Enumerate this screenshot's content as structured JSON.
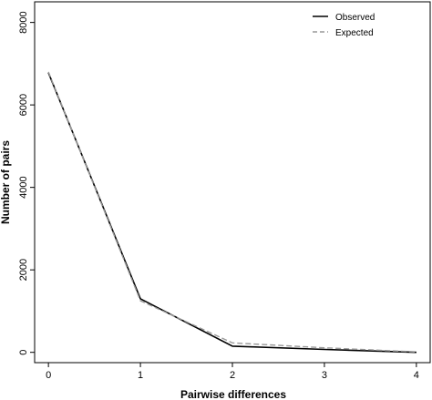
{
  "chart_data": {
    "type": "line",
    "xlabel": "Pairwise differences",
    "ylabel": "Number of pairs",
    "x": [
      0,
      1,
      2,
      3,
      4
    ],
    "xticks": [
      "0",
      "1",
      "2",
      "3",
      "4"
    ],
    "yticks": [
      "0",
      "2000",
      "4000",
      "6000",
      "8000"
    ],
    "xlim": [
      -0.15,
      4.15
    ],
    "ylim": [
      -250,
      8500
    ],
    "grid": false,
    "legend_position": "top-right",
    "series": [
      {
        "name": "Observed",
        "style": "solid",
        "color": "#000000",
        "values": [
          6780,
          1300,
          150,
          70,
          0
        ]
      },
      {
        "name": "Expected",
        "style": "dashed",
        "color": "#999999",
        "values": [
          6800,
          1250,
          230,
          110,
          10
        ]
      }
    ]
  }
}
